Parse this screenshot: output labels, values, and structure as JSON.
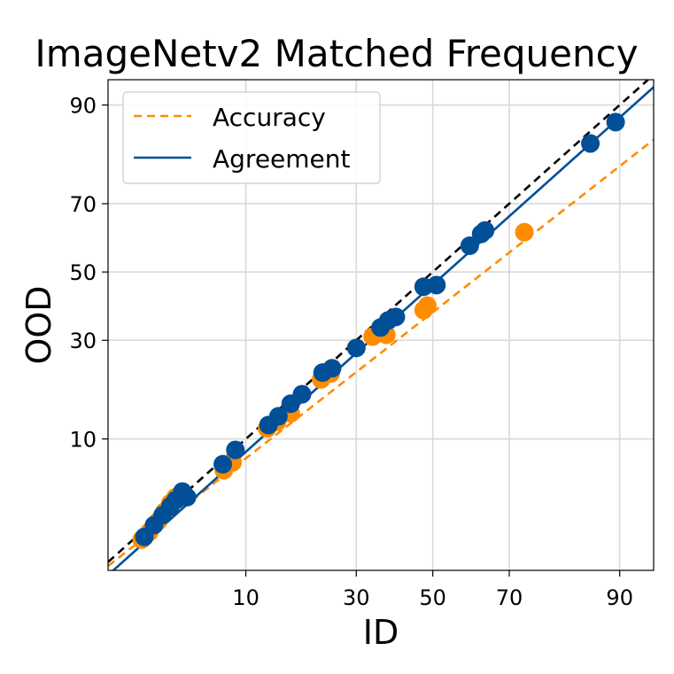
{
  "chart_data": {
    "type": "scatter",
    "title": "ImageNetv2 Matched Frequency",
    "xlabel": "ID",
    "ylabel": "OOD",
    "scale": "probit",
    "xlim": [
      1.3,
      93.5
    ],
    "ylim": [
      1.1,
      93
    ],
    "xticks": [
      10,
      30,
      50,
      70,
      90
    ],
    "yticks": [
      10,
      30,
      50,
      70,
      90
    ],
    "grid": true,
    "legend": {
      "placement": "top-left",
      "entries": [
        "Accuracy",
        "Agreement"
      ]
    },
    "colors": {
      "accuracy": "#ff8c00",
      "agreement": "#004f97",
      "diagonal": "#000000"
    },
    "series": [
      {
        "name": "Accuracy",
        "kind": "points",
        "points": [
          [
            2.3,
            2.0
          ],
          [
            2.6,
            2.3
          ],
          [
            3.0,
            2.8
          ],
          [
            3.3,
            3.3
          ],
          [
            3.6,
            3.8
          ],
          [
            3.9,
            4.2
          ],
          [
            7.6,
            6.4
          ],
          [
            8.5,
            7.2
          ],
          [
            12.8,
            11.5
          ],
          [
            14.3,
            12.5
          ],
          [
            16.5,
            13.9
          ],
          [
            22.2,
            20.5
          ],
          [
            24.2,
            21.8
          ],
          [
            34.0,
            31.0
          ],
          [
            37.5,
            31.5
          ],
          [
            47.5,
            38.5
          ],
          [
            48.5,
            39.8
          ],
          [
            73.5,
            62.0
          ]
        ]
      },
      {
        "name": "Agreement",
        "kind": "points",
        "points": [
          [
            2.4,
            2.1
          ],
          [
            2.8,
            2.6
          ],
          [
            3.2,
            3.1
          ],
          [
            3.6,
            3.6
          ],
          [
            3.9,
            4.0
          ],
          [
            4.3,
            4.6
          ],
          [
            4.6,
            4.2
          ],
          [
            7.5,
            7.0
          ],
          [
            8.8,
            8.6
          ],
          [
            13.0,
            12.0
          ],
          [
            14.5,
            13.4
          ],
          [
            16.5,
            15.6
          ],
          [
            18.5,
            17.4
          ],
          [
            22.5,
            22.0
          ],
          [
            24.5,
            23.0
          ],
          [
            30.0,
            28.0
          ],
          [
            36.0,
            33.5
          ],
          [
            38.0,
            35.5
          ],
          [
            40.0,
            36.5
          ],
          [
            47.5,
            45.5
          ],
          [
            51.0,
            46.0
          ],
          [
            60.0,
            58.0
          ],
          [
            63.0,
            61.5
          ],
          [
            64.0,
            62.5
          ],
          [
            86.0,
            83.8
          ],
          [
            89.5,
            87.5
          ]
        ]
      },
      {
        "name": "Accuracy",
        "kind": "fit-line",
        "points": [
          [
            1.3,
            1.2
          ],
          [
            93.5,
            84.5
          ]
        ]
      },
      {
        "name": "Agreement",
        "kind": "fit-line",
        "points": [
          [
            1.3,
            1.0
          ],
          [
            93.5,
            92.2
          ]
        ]
      },
      {
        "name": "",
        "kind": "diagonal",
        "points": [
          [
            1.3,
            1.3
          ],
          [
            93.0,
            93.0
          ]
        ]
      }
    ]
  }
}
